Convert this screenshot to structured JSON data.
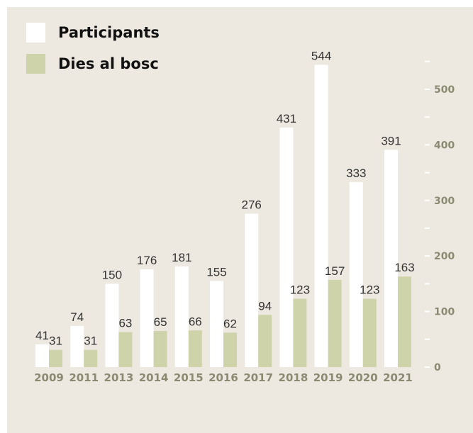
{
  "colors": {
    "background": "#eee9e0",
    "participants": "#ffffff",
    "days": "#cfd3aa",
    "tick_text": "#8a8a72",
    "label_text": "#333333"
  },
  "chart_data": {
    "type": "bar",
    "categories": [
      "2009",
      "2011",
      "2013",
      "2014",
      "2015",
      "2016",
      "2017",
      "2018",
      "2019",
      "2020",
      "2021"
    ],
    "series": [
      {
        "name": "Participants",
        "values": [
          41,
          74,
          150,
          176,
          181,
          155,
          276,
          431,
          544,
          333,
          391
        ]
      },
      {
        "name": "Dies al bosc",
        "values": [
          31,
          31,
          63,
          65,
          66,
          62,
          94,
          123,
          157,
          123,
          163
        ]
      }
    ],
    "ylim": [
      0,
      550
    ],
    "yticks": [
      0,
      100,
      200,
      300,
      400,
      500
    ],
    "y_axis_position": "right",
    "grid": false,
    "legend_position": "top-left",
    "data_labels": true
  }
}
